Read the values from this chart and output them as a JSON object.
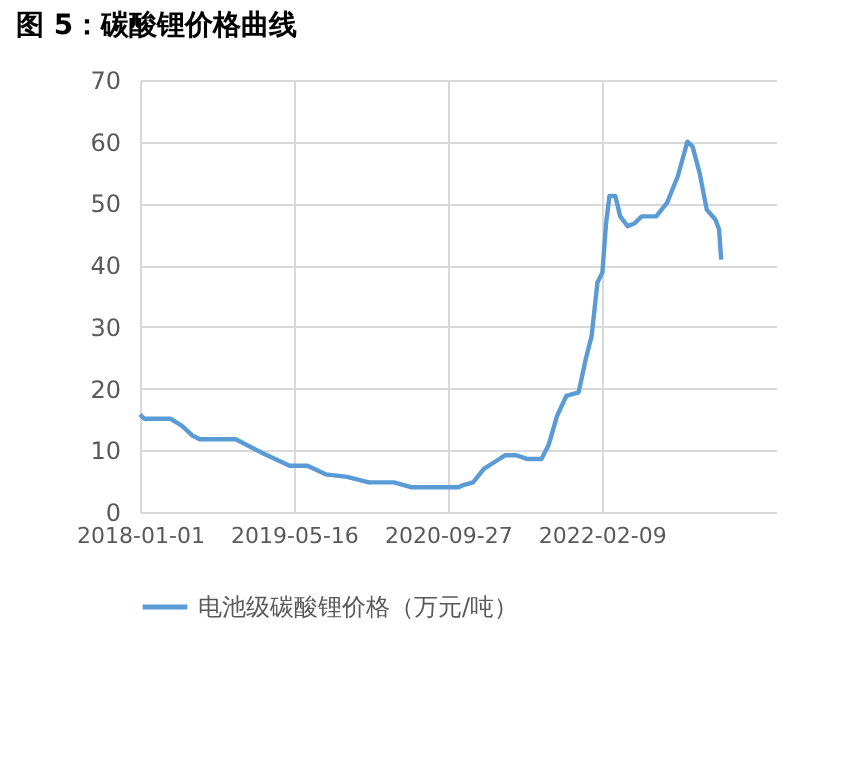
{
  "chart_data": {
    "type": "line",
    "title": "图 5：碳酸锂价格曲线",
    "x": [
      "2018-01-01",
      "2018-01-15",
      "2018-04-11",
      "2018-05-16",
      "2018-06-20",
      "2018-07-14",
      "2018-11-08",
      "2019-01-28",
      "2019-05-02",
      "2019-06-29",
      "2019-08-27",
      "2019-11-05",
      "2020-01-14",
      "2020-04-05",
      "2020-06-02",
      "2020-11-01",
      "2020-11-13",
      "2020-12-18",
      "2021-01-22",
      "2021-02-26",
      "2021-04-02",
      "2021-05-07",
      "2021-06-11",
      "2021-07-28",
      "2021-08-20",
      "2021-09-17",
      "2021-10-17",
      "2021-11-26",
      "2021-12-19",
      "2022-01-07",
      "2022-01-26",
      "2022-02-11",
      "2022-02-23",
      "2022-03-06",
      "2022-03-25",
      "2022-04-10",
      "2022-05-04",
      "2022-05-27",
      "2022-06-19",
      "2022-08-05",
      "2022-09-09",
      "2022-10-14",
      "2022-11-14",
      "2022-12-01",
      "2022-12-24",
      "2023-01-16",
      "2023-02-13",
      "2023-02-25",
      "2023-03-04"
    ],
    "series": [
      {
        "name": "电池级碳酸锂价格（万元/吨）",
        "color": "#5b9bd5",
        "values": [
          15.8,
          15.1,
          15.1,
          14.0,
          12.4,
          11.8,
          11.8,
          9.7,
          7.5,
          7.5,
          6.1,
          5.7,
          4.8,
          4.8,
          4.0,
          4.0,
          4.3,
          4.8,
          7.0,
          8.1,
          9.2,
          9.2,
          8.6,
          8.6,
          10.8,
          15.6,
          18.8,
          19.4,
          24.8,
          28.5,
          37.2,
          38.8,
          46.8,
          51.2,
          51.2,
          47.9,
          46.3,
          46.8,
          47.9,
          47.9,
          50.1,
          54.4,
          60.0,
          59.2,
          54.9,
          49.0,
          47.4,
          45.8,
          40.9
        ]
      }
    ],
    "xlim": [
      "2018-01-01",
      "2023-08-29"
    ],
    "xticks": [
      {
        "value": "2018-01-01",
        "label": "2018-01-01"
      },
      {
        "value": "2019-05-16",
        "label": "2019-05-16"
      },
      {
        "value": "2020-09-27",
        "label": "2020-09-27"
      },
      {
        "value": "2022-02-09",
        "label": "2022-02-09"
      }
    ],
    "ylim": [
      0,
      70
    ],
    "yticks": [
      0,
      10,
      20,
      30,
      40,
      50,
      60,
      70
    ],
    "grid": true,
    "legend": "bottom",
    "line_style": "solid"
  }
}
